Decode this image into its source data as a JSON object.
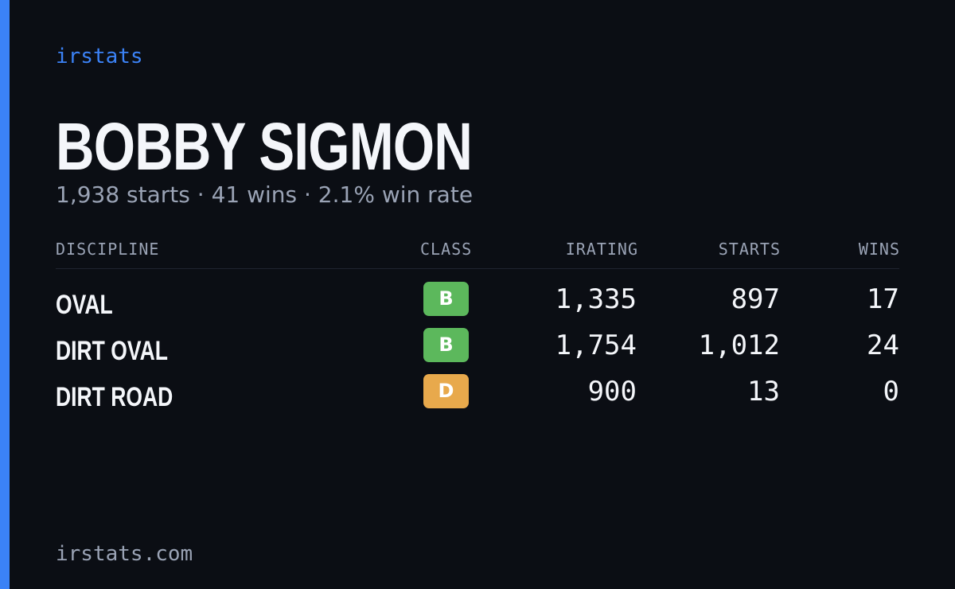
{
  "brand": "irstats",
  "player": {
    "name": "BOBBY SIGMON",
    "summary": "1,938 starts · 41 wins · 2.1% win rate"
  },
  "table": {
    "headers": [
      "DISCIPLINE",
      "CLASS",
      "IRATING",
      "STARTS",
      "WINS"
    ],
    "rows": [
      {
        "discipline": "OVAL",
        "class": "B",
        "class_color": "#5cb85c",
        "irating": "1,335",
        "starts": "897",
        "wins": "17"
      },
      {
        "discipline": "DIRT OVAL",
        "class": "B",
        "class_color": "#5cb85c",
        "irating": "1,754",
        "starts": "1,012",
        "wins": "24"
      },
      {
        "discipline": "DIRT ROAD",
        "class": "D",
        "class_color": "#e8a94c",
        "irating": "900",
        "starts": "13",
        "wins": "0"
      }
    ]
  },
  "footer": "irstats.com"
}
